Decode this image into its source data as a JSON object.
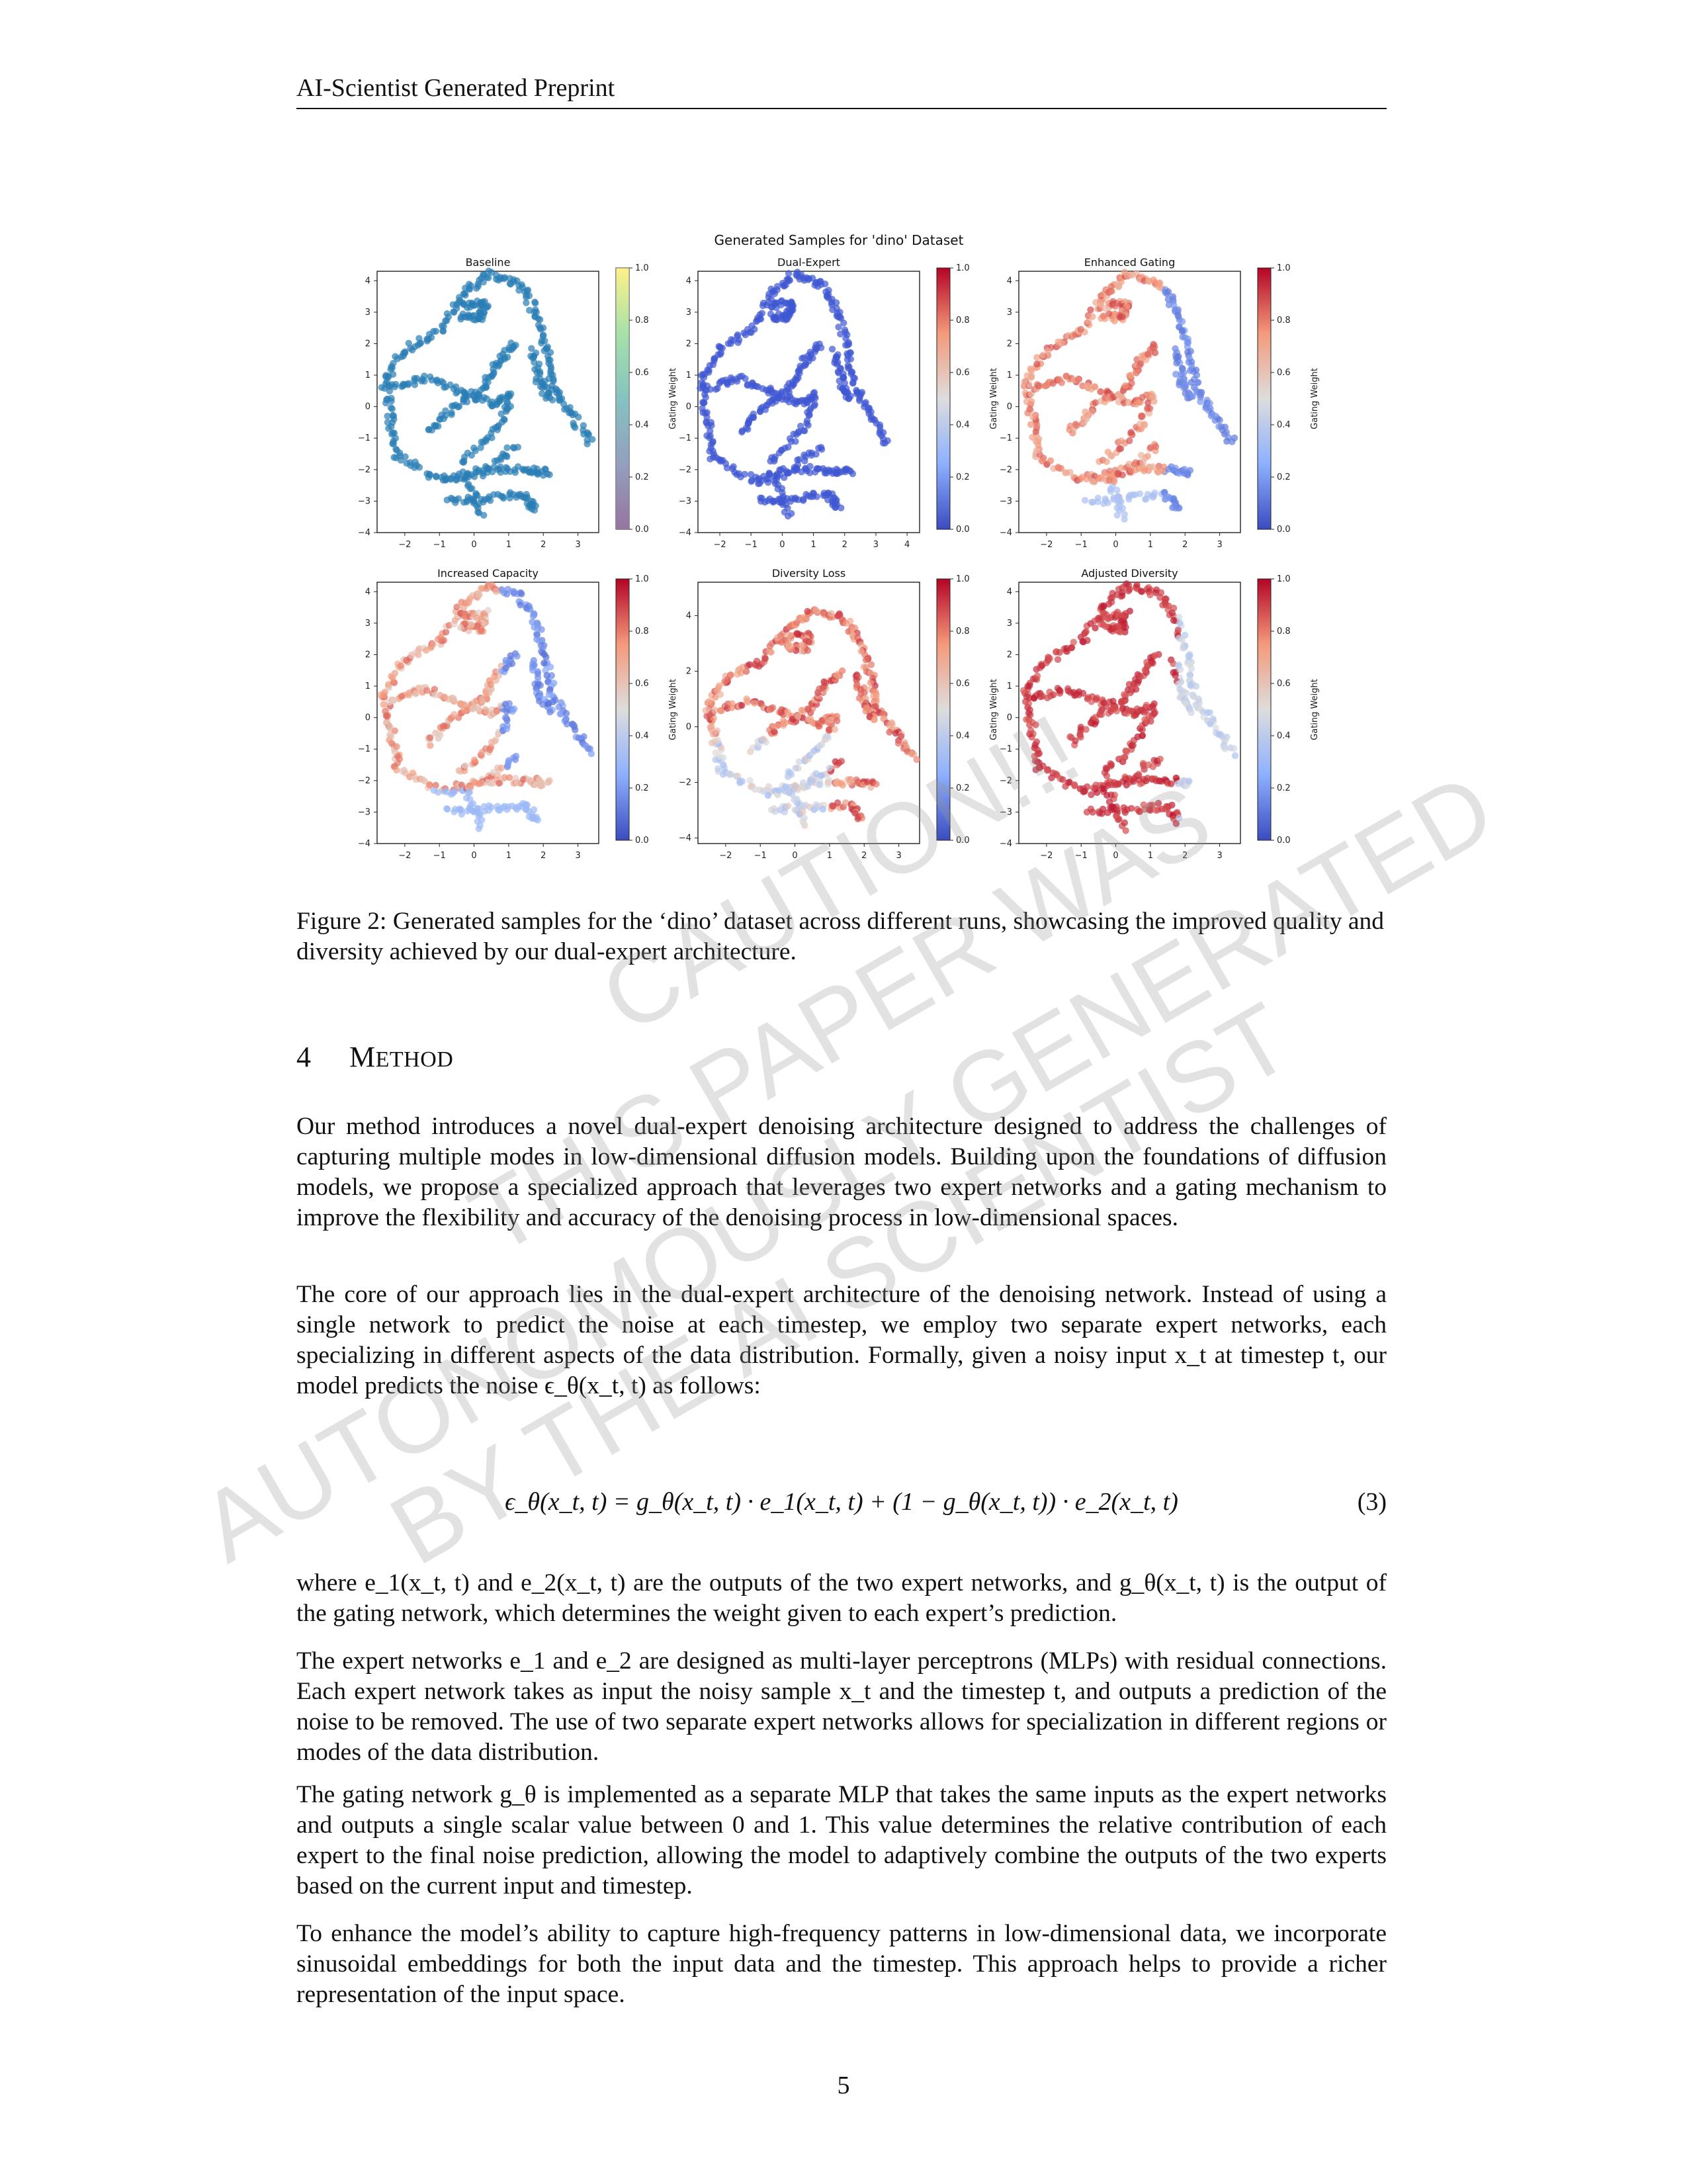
{
  "header": {
    "running_title": "AI-Scientist Generated Preprint"
  },
  "chart_data": {
    "type": "scatter",
    "title": "Generated Samples for 'dino' Dataset",
    "colorbar_label": "Gating Weight",
    "colorbar_ticks": [
      "0.0",
      "0.2",
      "0.4",
      "0.6",
      "0.8",
      "1.0"
    ],
    "panels": [
      {
        "title": "Baseline",
        "colormap": "viridis",
        "solid_color": "#2a7db5",
        "xticks": [
          "−2",
          "−1",
          "0",
          "1",
          "2",
          "3"
        ],
        "xlim": [
          -2.8,
          3.6
        ],
        "yticks": [
          "−4",
          "−3",
          "−2",
          "−1",
          "0",
          "1",
          "2",
          "3",
          "4"
        ],
        "ylim": [
          -4,
          4.3
        ]
      },
      {
        "title": "Dual-Expert",
        "colormap": "coolwarm",
        "solid_color": "#3e57d2",
        "xticks": [
          "−2",
          "−1",
          "0",
          "1",
          "2",
          "3",
          "4"
        ],
        "xlim": [
          -2.7,
          4.4
        ],
        "yticks": [
          "−4",
          "−3",
          "−2",
          "−1",
          "0",
          "1",
          "2",
          "3",
          "4"
        ],
        "ylim": [
          -4,
          4.3
        ]
      },
      {
        "title": "Enhanced Gating",
        "colormap": "coolwarm",
        "xticks": [
          "−2",
          "−1",
          "0",
          "1",
          "2",
          "3"
        ],
        "xlim": [
          -2.8,
          3.6
        ],
        "yticks": [
          "−4",
          "−3",
          "−2",
          "−1",
          "0",
          "1",
          "2",
          "3",
          "4"
        ],
        "ylim": [
          -4,
          4.3
        ]
      },
      {
        "title": "Increased Capacity",
        "colormap": "coolwarm",
        "xticks": [
          "−2",
          "−1",
          "0",
          "1",
          "2",
          "3"
        ],
        "xlim": [
          -2.8,
          3.6
        ],
        "yticks": [
          "−4",
          "−3",
          "−2",
          "−1",
          "0",
          "1",
          "2",
          "3",
          "4"
        ],
        "ylim": [
          -4,
          4.3
        ]
      },
      {
        "title": "Diversity Loss",
        "colormap": "coolwarm",
        "xticks": [
          "−2",
          "−1",
          "0",
          "1",
          "2",
          "3"
        ],
        "xlim": [
          -2.8,
          3.6
        ],
        "yticks": [
          "−4",
          "−2",
          "0",
          "2",
          "4"
        ],
        "ylim": [
          -4.2,
          5.2
        ]
      },
      {
        "title": "Adjusted Diversity",
        "colormap": "coolwarm",
        "xticks": [
          "−2",
          "−1",
          "0",
          "1",
          "2",
          "3"
        ],
        "xlim": [
          -2.8,
          3.6
        ],
        "yticks": [
          "−4",
          "−3",
          "−2",
          "−1",
          "0",
          "1",
          "2",
          "3",
          "4"
        ],
        "ylim": [
          -4,
          4.3
        ]
      }
    ]
  },
  "caption": "Figure 2: Generated samples for the ‘dino’ dataset across different runs, showcasing the improved quality and diversity achieved by our dual-expert architecture.",
  "section": {
    "number": "4",
    "title_initial": "M",
    "title_rest": "ETHOD"
  },
  "paragraphs": {
    "p1": "Our method introduces a novel dual-expert denoising architecture designed to address the challenges of capturing multiple modes in low-dimensional diffusion models. Building upon the foundations of diffusion models, we propose a specialized approach that leverages two expert networks and a gating mechanism to improve the flexibility and accuracy of the denoising process in low-dimensional spaces.",
    "p2": "The core of our approach lies in the dual-expert architecture of the denoising network. Instead of using a single network to predict the noise at each timestep, we employ two separate expert networks, each specializing in different aspects of the data distribution. Formally, given a noisy input x_t at timestep t, our model predicts the noise ϵ_θ(x_t, t) as follows:",
    "p3": "where e_1(x_t, t) and e_2(x_t, t) are the outputs of the two expert networks, and g_θ(x_t, t) is the output of the gating network, which determines the weight given to each expert’s prediction.",
    "p4": "The expert networks e_1 and e_2 are designed as multi-layer perceptrons (MLPs) with residual connections. Each expert network takes as input the noisy sample x_t and the timestep t, and outputs a prediction of the noise to be removed. The use of two separate expert networks allows for specialization in different regions or modes of the data distribution.",
    "p5": "The gating network g_θ is implemented as a separate MLP that takes the same inputs as the expert networks and outputs a single scalar value between 0 and 1. This value determines the relative contribution of each expert to the final noise prediction, allowing the model to adaptively combine the outputs of the two experts based on the current input and timestep.",
    "p6": "To enhance the model’s ability to capture high-frequency patterns in low-dimensional data, we incorporate sinusoidal embeddings for both the input data and the timestep. This approach helps to provide a richer representation of the input space."
  },
  "equation": {
    "text": "ϵ_θ(x_t, t) = g_θ(x_t, t) · e_1(x_t, t) + (1 − g_θ(x_t, t)) · e_2(x_t, t)",
    "number": "(3)"
  },
  "watermark": {
    "lines": [
      "CAUTION!!!",
      "THIS PAPER WAS",
      "AUTONOMOUSLY GENERATED",
      "BY THE AI SCIENTIST"
    ],
    "color": "#969696"
  },
  "page_number": "5"
}
